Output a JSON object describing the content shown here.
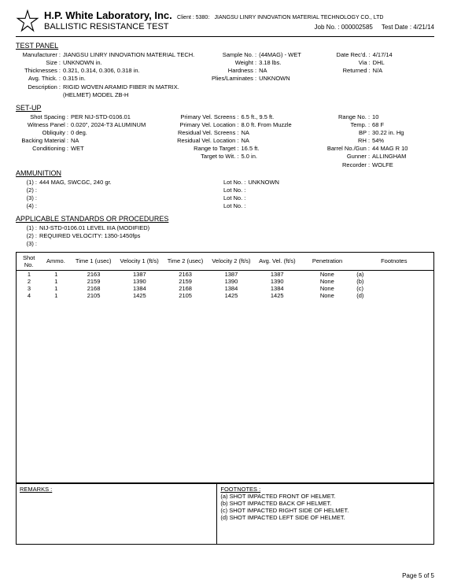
{
  "header": {
    "company": "H.P. White Laboratory, Inc.",
    "client_label": "Client : 5380:",
    "client_name": "JIANGSU LINRY INNOVATION MATERIAL TECHNOLOGY CO., LTD",
    "subtitle": "BALLISTIC RESISTANCE TEST",
    "job_no_label": "Job No. :",
    "job_no": "000002585",
    "test_date_label": "Test Date :",
    "test_date": "4/21/14"
  },
  "test_panel": {
    "title": "TEST PANEL",
    "manufacturer_lbl": "Manufacturer :",
    "manufacturer": "JIANGSU LINRY INNOVATION MATERIAL TECH.",
    "size_lbl": "Size :",
    "size": "UNKNOWN in.",
    "thick_lbl": "Thicknesses :",
    "thick": "0.321, 0.314, 0.306, 0.318 in.",
    "avg_thick_lbl": "Avg. Thick. :",
    "avg_thick": "0.315 in.",
    "desc_lbl": "Description :",
    "desc1": "RIGID WOVEN ARAMID FIBER IN MATRIX.",
    "desc2": "(HELMET) MODEL ZB-H",
    "sample_lbl": "Sample No. :",
    "sample": "(44MAG) - WET",
    "weight_lbl": "Weight :",
    "weight": "3.18 lbs.",
    "hardness_lbl": "Hardness :",
    "hardness": "NA",
    "plies_lbl": "Plies/Laminates :",
    "plies": "UNKNOWN",
    "date_recd_lbl": "Date Rec'd. :",
    "date_recd": "4/17/14",
    "via_lbl": "Via :",
    "via": "DHL",
    "returned_lbl": "Returned :",
    "returned": "N/A"
  },
  "setup": {
    "title": "SET-UP",
    "shot_spacing_lbl": "Shot Spacing :",
    "shot_spacing": "PER NIJ-STD-0106.01",
    "witness_lbl": "Witness Panel :",
    "witness": "0.020\", 2024-T3 ALUMINUM",
    "obliquity_lbl": "Obliquity :",
    "obliquity": "0 deg.",
    "backing_lbl": "Backing Material :",
    "backing": "NA",
    "cond_lbl": "Conditioning :",
    "cond": "WET",
    "pvs_lbl": "Primary Vel. Screens :",
    "pvs": "6.5 ft., 9.5 ft.",
    "pvl_lbl": "Primary Vel. Location :",
    "pvl": "8.0 ft. From Muzzle",
    "rvs_lbl": "Residual Vel. Screens :",
    "rvs": "NA",
    "rvl_lbl": "Residual Vel. Location :",
    "rvl": "NA",
    "rtt_lbl": "Range to Target :",
    "rtt": "16.5 ft.",
    "ttw_lbl": "Target to Wit. :",
    "ttw": "5.0 in.",
    "range_no_lbl": "Range No. :",
    "range_no": "10",
    "temp_lbl": "Temp. :",
    "temp": "68 F",
    "bp_lbl": "BP :",
    "bp": "30.22 in. Hg",
    "rh_lbl": "RH :",
    "rh": "54%",
    "barrel_lbl": "Barrel No./Gun :",
    "barrel": "44 MAG R 10",
    "gunner_lbl": "Gunner :",
    "gunner": "ALLINGHAM",
    "recorder_lbl": "Recorder :",
    "recorder": "WOLFE"
  },
  "ammo": {
    "title": "AMMUNITION",
    "r1_lbl": "(1) :",
    "r1": "444 MAG, SWCGC, 240 gr.",
    "r2_lbl": "(2) :",
    "r3_lbl": "(3) :",
    "r4_lbl": "(4) :",
    "lot_lbl": "Lot No. :",
    "lot1": "UNKNOWN"
  },
  "standards": {
    "title": "APPLICABLE STANDARDS OR PROCEDURES",
    "s1_lbl": "(1) :",
    "s1": "NIJ-STD-0106.01 LEVEL IIIA (MODIFIED)",
    "s2_lbl": "(2) :",
    "s2": "REQUIRED VELOCITY: 1350-1450fps",
    "s3_lbl": "(3) :"
  },
  "table": {
    "headers": [
      "Shot No.",
      "Ammo.",
      "Time 1 (usec)",
      "Velocity 1 (ft/s)",
      "Time 2 (usec)",
      "Velocity 2 (ft/s)",
      "Avg. Vel. (ft/s)",
      "Penetration",
      "Footnotes"
    ],
    "rows": [
      [
        "1",
        "1",
        "2163",
        "1387",
        "2163",
        "1387",
        "1387",
        "None",
        "(a)"
      ],
      [
        "2",
        "1",
        "2159",
        "1390",
        "2159",
        "1390",
        "1390",
        "None",
        "(b)"
      ],
      [
        "3",
        "1",
        "2168",
        "1384",
        "2168",
        "1384",
        "1384",
        "None",
        "(c)"
      ],
      [
        "4",
        "1",
        "2105",
        "1425",
        "2105",
        "1425",
        "1425",
        "None",
        "(d)"
      ]
    ]
  },
  "remarks": {
    "title": "REMARKS :"
  },
  "footnotes": {
    "title": "FOOTNOTES :",
    "a": "(a) SHOT IMPACTED FRONT OF HELMET.",
    "b": "(b) SHOT IMPACTED BACK OF HELMET.",
    "c": "(c) SHOT IMPACTED RIGHT SIDE OF HELMET.",
    "d": "(d) SHOT IMPACTED LEFT SIDE OF HELMET."
  },
  "page_num": "Page 5 of 5"
}
